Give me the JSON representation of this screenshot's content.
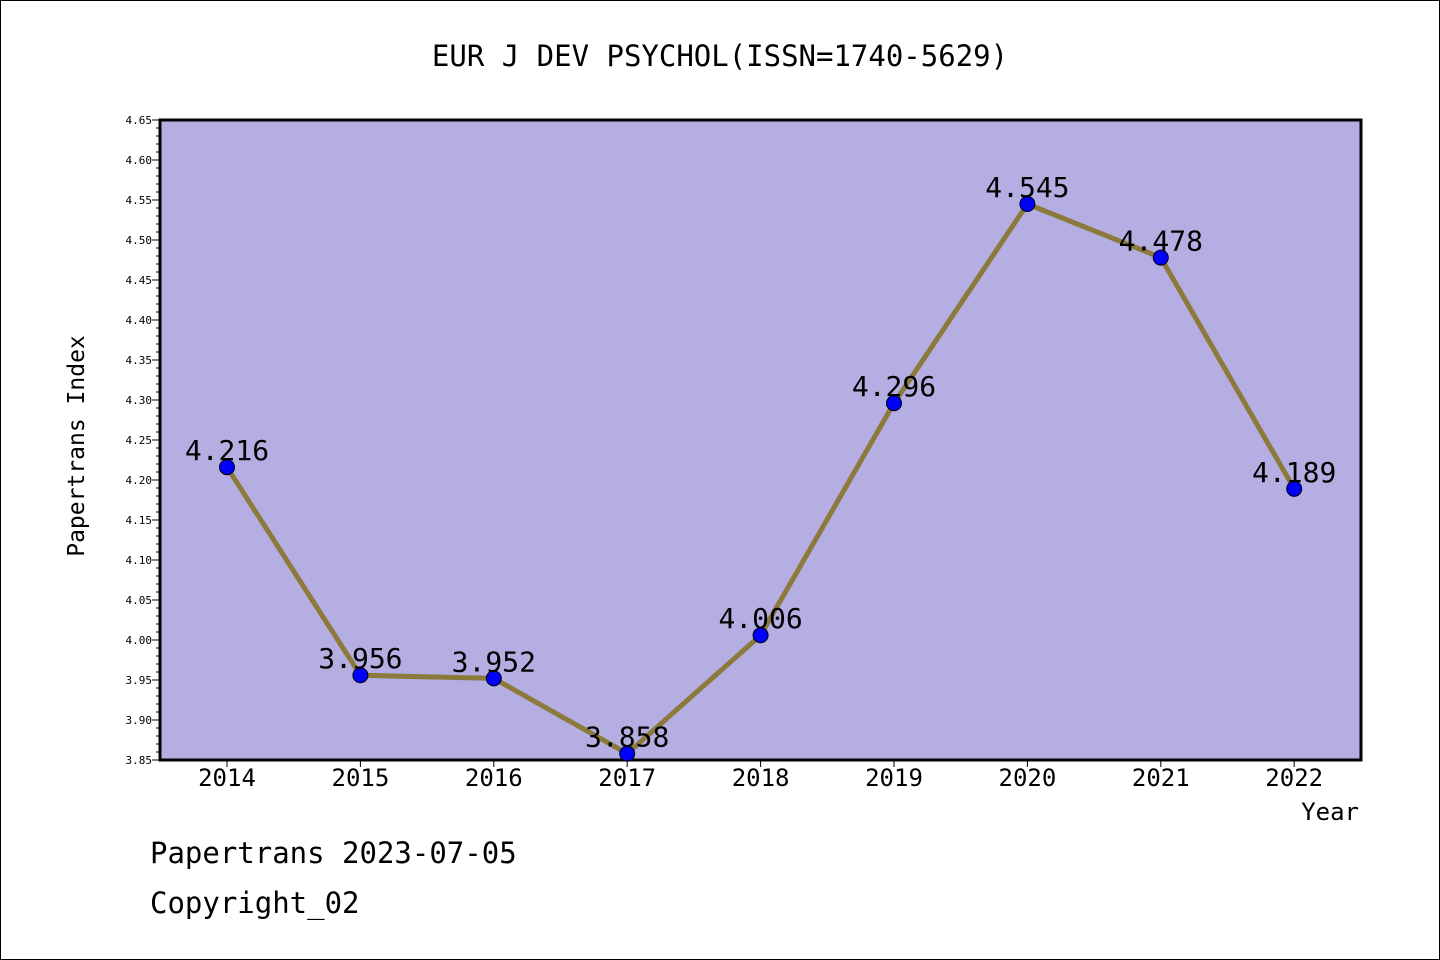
{
  "chart_data": {
    "type": "line",
    "title": "EUR J DEV PSYCHOL(ISSN=1740-5629)",
    "xlabel": "Year",
    "ylabel": "Papertrans Index",
    "categories": [
      "2014",
      "2015",
      "2016",
      "2017",
      "2018",
      "2019",
      "2020",
      "2021",
      "2022"
    ],
    "values": [
      4.216,
      3.956,
      3.952,
      3.858,
      4.006,
      4.296,
      4.545,
      4.478,
      4.189
    ],
    "value_labels": [
      "4.216",
      "3.956",
      "3.952",
      "3.858",
      "4.006",
      "4.296",
      "4.545",
      "4.478",
      "4.189"
    ],
    "ylim": [
      3.85,
      4.65
    ],
    "yticks": [
      "3.85",
      "3.90",
      "3.95",
      "4.00",
      "4.05",
      "4.10",
      "4.15",
      "4.20",
      "4.25",
      "4.30",
      "4.35",
      "4.40",
      "4.45",
      "4.50",
      "4.55",
      "4.60",
      "4.65"
    ],
    "grid": false,
    "colors": {
      "plot_background": "#b4aee2",
      "line": "#8c7a3c",
      "marker": "#0000ff"
    }
  },
  "footer": {
    "line1": "Papertrans 2023-07-05",
    "line2": "Copyright_02"
  }
}
